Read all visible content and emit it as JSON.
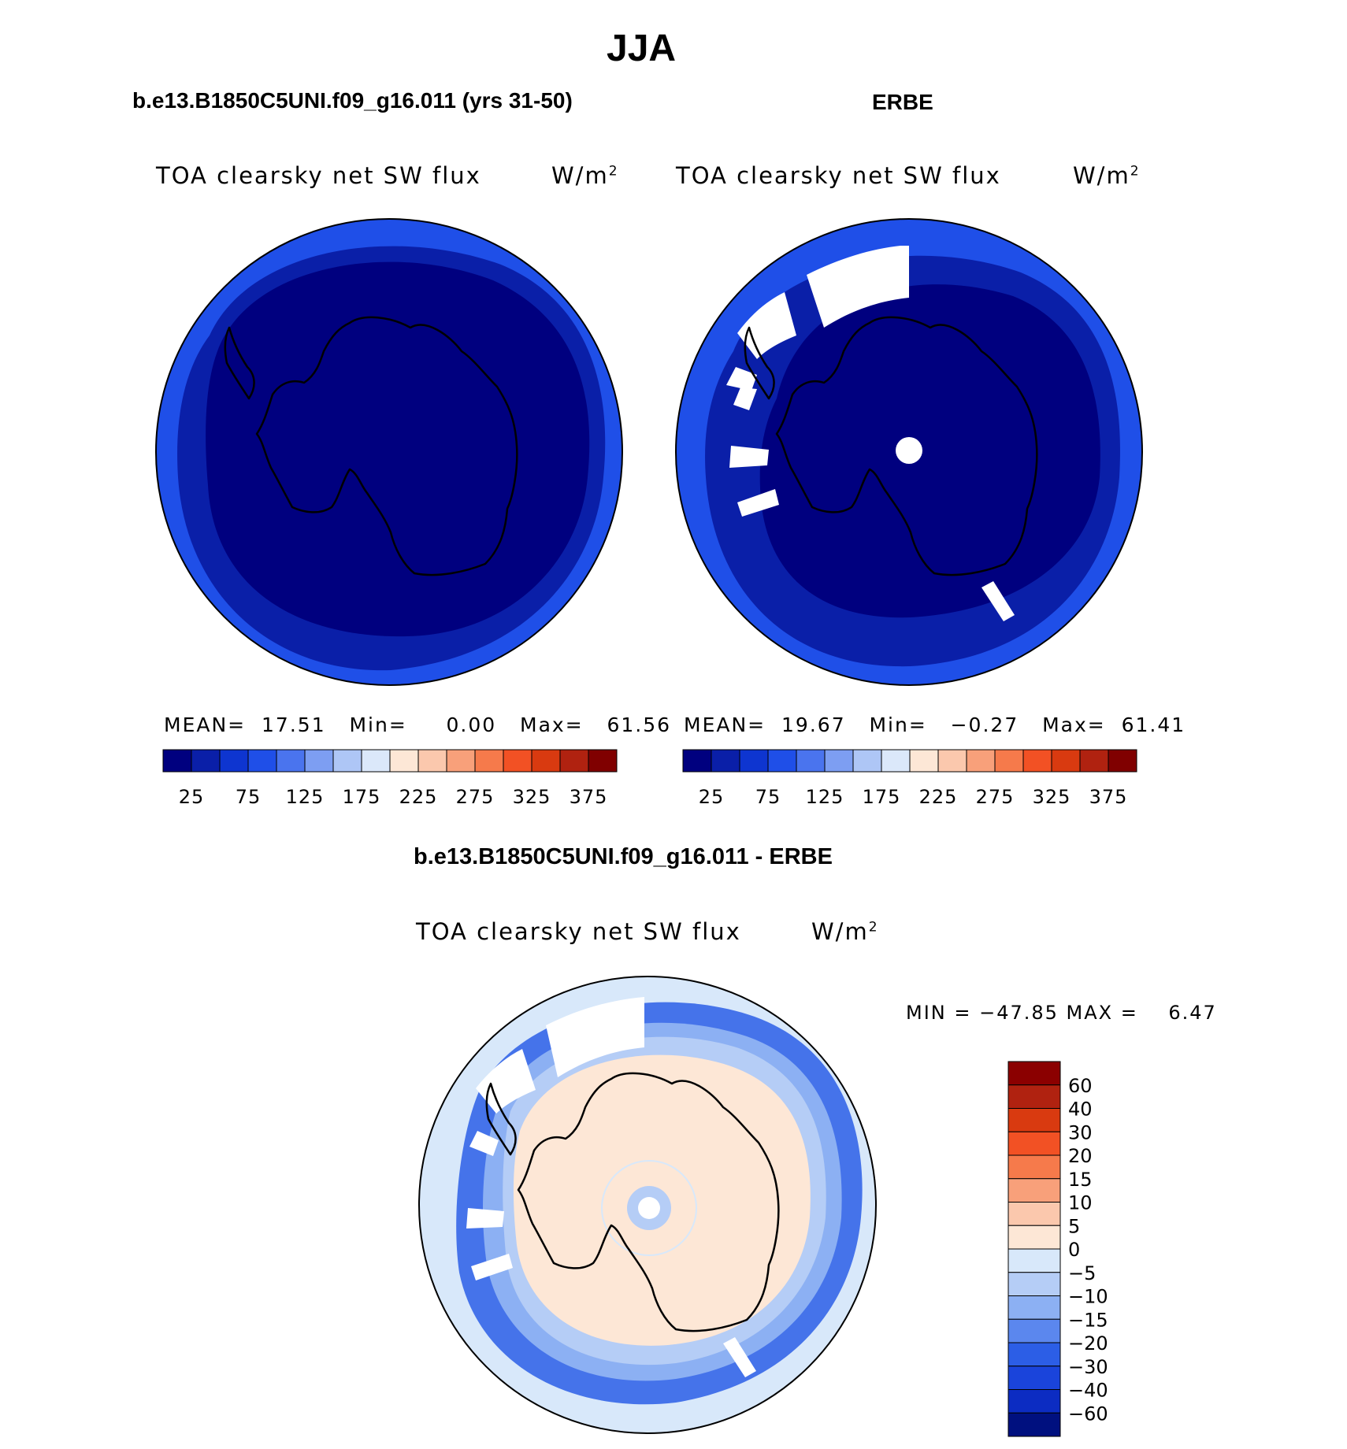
{
  "main_title": "JJA",
  "panels": {
    "model": {
      "title": "b.e13.B1850C5UNI.f09_g16.011 (yrs 31-50)",
      "variable": "TOA clearsky net SW flux",
      "units": "W/m",
      "units_sup": "2",
      "stats": {
        "mean_label": "MEAN=",
        "mean": "17.51",
        "min_label": "Min=",
        "min": "0.00",
        "max_label": "Max=",
        "max": "61.56"
      }
    },
    "obs": {
      "title": "ERBE",
      "variable": "TOA clearsky net SW flux",
      "units": "W/m",
      "units_sup": "2",
      "stats": {
        "mean_label": "MEAN=",
        "mean": "19.67",
        "min_label": "Min=",
        "min": "−0.27",
        "max_label": "Max=",
        "max": "61.41"
      }
    },
    "diff": {
      "title": "b.e13.B1850C5UNI.f09_g16.011 - ERBE",
      "variable": "TOA clearsky net SW flux",
      "units": "W/m",
      "units_sup": "2",
      "minmax": "MIN = −47.85 MAX =    6.47"
    }
  },
  "abs_colorbar": {
    "colors": [
      "#00007f",
      "#0a1fa8",
      "#0e35d0",
      "#1f4fe8",
      "#4a74ee",
      "#7d9ef2",
      "#aec6f6",
      "#dbe8fa",
      "#fde7d6",
      "#fbc8ad",
      "#f8a07a",
      "#f67a4b",
      "#f25124",
      "#d93a10",
      "#b02210",
      "#800000"
    ],
    "tick_labels": [
      "25",
      "75",
      "125",
      "175",
      "225",
      "275",
      "325",
      "375"
    ]
  },
  "diff_colorbar": {
    "colors_top_to_bottom": [
      "#8b0000",
      "#b02210",
      "#d93a10",
      "#f25124",
      "#f67a4b",
      "#f8a07a",
      "#fbc8ad",
      "#fde7d6",
      "#d8e8fa",
      "#b5cdf6",
      "#8cb0f3",
      "#5b87ee",
      "#2c5ee6",
      "#1a44db",
      "#0c2cc2",
      "#00107f"
    ],
    "tick_labels": [
      "60",
      "40",
      "30",
      "20",
      "15",
      "10",
      "5",
      "0",
      "−5",
      "−10",
      "−15",
      "−20",
      "−30",
      "−40",
      "−60"
    ]
  },
  "colors": {
    "ocean_outer": "#1f4fe8",
    "ocean_mid": "#0a1fa8",
    "interior": "#00007f",
    "missing": "#ffffff",
    "diff_land": "#fde7d6",
    "diff_ocean": "#d8e8fa"
  }
}
